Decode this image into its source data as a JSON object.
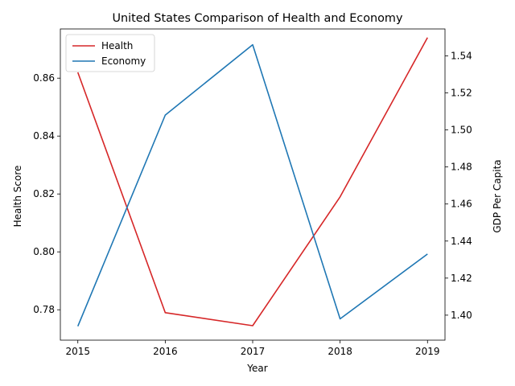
{
  "chart_data": {
    "type": "line",
    "title": "United States Comparison of Health and Economy",
    "xlabel": "Year",
    "ylabel_left": "Health Score",
    "ylabel_right": "GDP Per Capita",
    "x": [
      2015,
      2016,
      2017,
      2018,
      2019
    ],
    "x_tick_labels": [
      "2015",
      "2016",
      "2017",
      "2018",
      "2019"
    ],
    "ylim_left": [
      0.7695,
      0.877
    ],
    "yticks_left": [
      "0.78",
      "0.80",
      "0.82",
      "0.84",
      "0.86"
    ],
    "ylim_right": [
      1.3865,
      1.5545
    ],
    "yticks_right": [
      "1.40",
      "1.42",
      "1.44",
      "1.46",
      "1.48",
      "1.50",
      "1.52",
      "1.54"
    ],
    "series": [
      {
        "name": "Health",
        "axis": "left",
        "color": "#d62728",
        "values": [
          0.862,
          0.779,
          0.7745,
          0.819,
          0.874
        ]
      },
      {
        "name": "Economy",
        "axis": "right",
        "color": "#1f77b4",
        "values": [
          1.394,
          1.508,
          1.546,
          1.398,
          1.433
        ]
      }
    ],
    "legend": {
      "position": "upper-left"
    },
    "grid": false
  }
}
